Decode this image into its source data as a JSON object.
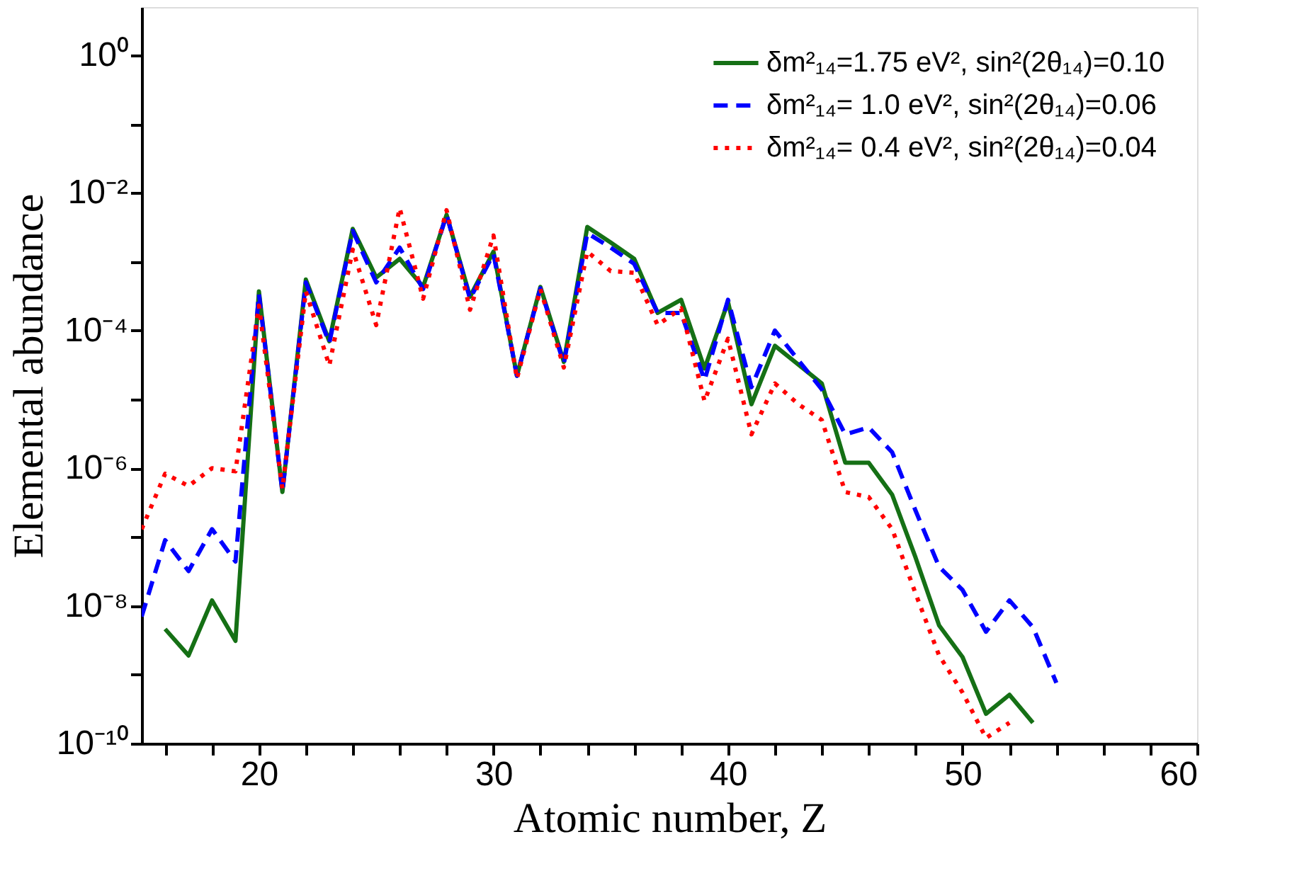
{
  "chart_data": {
    "type": "line",
    "xlabel": "Atomic number, Z",
    "ylabel": "Elemental abundance",
    "log": "y",
    "xlim": [
      15,
      60
    ],
    "ylim": [
      1e-10,
      5
    ],
    "xticks": [
      {
        "value": 16,
        "label": null
      },
      {
        "value": 18,
        "label": null
      },
      20,
      {
        "value": 22,
        "label": null
      },
      {
        "value": 24,
        "label": null
      },
      {
        "value": 26,
        "label": null
      },
      {
        "value": 28,
        "label": null
      },
      30,
      {
        "value": 32,
        "label": null
      },
      {
        "value": 34,
        "label": null
      },
      {
        "value": 36,
        "label": null
      },
      {
        "value": 38,
        "label": null
      },
      40,
      {
        "value": 42,
        "label": null
      },
      {
        "value": 44,
        "label": null
      },
      {
        "value": 46,
        "label": null
      },
      {
        "value": 48,
        "label": null
      },
      50,
      {
        "value": 52,
        "label": null
      },
      {
        "value": 54,
        "label": null
      },
      {
        "value": 56,
        "label": null
      },
      {
        "value": 58,
        "label": null
      },
      60
    ],
    "yticks": [
      {
        "value": 1,
        "label": "10⁰"
      },
      {
        "value": 0.1,
        "label": null
      },
      {
        "value": 0.01,
        "label": "10⁻²"
      },
      {
        "value": 0.001,
        "label": null
      },
      {
        "value": 0.0001,
        "label": "10⁻⁴"
      },
      {
        "value": 1e-05,
        "label": null
      },
      {
        "value": 1e-06,
        "label": "10⁻⁶"
      },
      {
        "value": 1e-07,
        "label": null
      },
      {
        "value": 1e-08,
        "label": "10⁻⁸"
      },
      {
        "value": 1e-09,
        "label": null
      },
      {
        "value": 1e-10,
        "label": "10⁻¹⁰"
      }
    ],
    "x": [
      15,
      16,
      17,
      18,
      19,
      20,
      21,
      22,
      23,
      24,
      25,
      26,
      27,
      28,
      29,
      30,
      31,
      32,
      33,
      34,
      35,
      36,
      37,
      38,
      39,
      40,
      41,
      42,
      43,
      44,
      45,
      46,
      47,
      48,
      49,
      50,
      51,
      52,
      53,
      54
    ],
    "grid": false,
    "legend": "top right",
    "marker": "none",
    "series": [
      {
        "name": "δm²₁₄=1.75 eV², sin²(2θ₁₄)=0.10",
        "color": "#157015",
        "line_style": "solid",
        "values": [
          null,
          4.6e-09,
          1.9e-09,
          1.2e-08,
          3.1e-09,
          0.00037,
          4.5e-07,
          0.00055,
          7e-05,
          0.003,
          0.00059,
          0.0011,
          0.00043,
          0.0048,
          0.00031,
          0.0014,
          2.2e-05,
          0.00043,
          3.5e-05,
          0.0032,
          0.0019,
          0.0011,
          0.00018,
          0.00028,
          2.8e-05,
          0.00026,
          8.5e-06,
          6e-05,
          3.2e-05,
          1.7e-05,
          1.2e-06,
          1.2e-06,
          4.1e-07,
          5e-08,
          5.2e-09,
          1.8e-09,
          2.7e-10,
          5.1e-10,
          2e-10,
          null
        ]
      },
      {
        "name": "δm²₁₄= 1.0 eV², sin²(2θ₁₄)=0.06",
        "color": "#0000ff",
        "line_style": "dashed",
        "values": [
          7e-09,
          9e-08,
          3.2e-08,
          1.3e-07,
          4.4e-08,
          0.00034,
          4.5e-07,
          0.0005,
          6.6e-05,
          0.0028,
          0.0005,
          0.0016,
          0.0004,
          0.0048,
          0.00029,
          0.0013,
          2.2e-05,
          0.00041,
          3.3e-05,
          0.0026,
          0.0016,
          0.00093,
          0.00018,
          0.00018,
          1.9e-05,
          0.00028,
          1.5e-05,
          0.0001,
          3.7e-05,
          1.4e-05,
          3.1e-06,
          3.9e-06,
          1.7e-06,
          2.4e-07,
          3.7e-08,
          1.7e-08,
          4.2e-09,
          1.2e-08,
          4.9e-09,
          7.6e-10
        ]
      },
      {
        "name": "δm²₁₄= 0.4 eV², sin²(2θ₁₄)=0.04",
        "color": "#ff0000",
        "line_style": "dotted",
        "values": [
          1.3e-07,
          8.3e-07,
          5.5e-07,
          1e-06,
          9e-07,
          0.00023,
          5e-07,
          0.00037,
          3.1e-05,
          0.0015,
          0.00012,
          0.006,
          0.00029,
          0.0056,
          0.0002,
          0.0024,
          2e-05,
          0.0004,
          2.9e-05,
          0.0014,
          0.00073,
          0.00069,
          0.00012,
          0.00021,
          9.4e-06,
          7.6e-05,
          3.1e-06,
          1.7e-05,
          8.5e-06,
          5e-06,
          4.5e-07,
          3.8e-07,
          1.3e-07,
          1.5e-08,
          1.9e-09,
          5.5e-10,
          1.2e-10,
          2e-10,
          null,
          null
        ]
      }
    ]
  }
}
